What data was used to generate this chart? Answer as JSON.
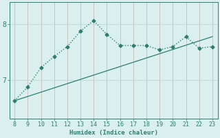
{
  "x_data": [
    8,
    9,
    10,
    11,
    12,
    13,
    14,
    15,
    16,
    17,
    18,
    19,
    20,
    21,
    22,
    23
  ],
  "y_curve": [
    6.62,
    6.87,
    7.22,
    7.42,
    7.6,
    7.88,
    8.07,
    7.82,
    7.62,
    7.62,
    7.62,
    7.54,
    7.6,
    7.78,
    7.57,
    7.6
  ],
  "y_line_x": [
    8,
    23
  ],
  "y_line_y": [
    6.62,
    7.78
  ],
  "curve_color": "#2e7d6e",
  "line_color": "#2e7d6e",
  "bg_color": "#d9f0ef",
  "grid_color_v": "#c9b0b0",
  "grid_color_h": "#b8d0ce",
  "xlabel": "Humidex (Indice chaleur)",
  "xticks": [
    8,
    9,
    10,
    11,
    12,
    13,
    14,
    15,
    16,
    17,
    18,
    19,
    20,
    21,
    22,
    23
  ],
  "yticks": [
    7,
    8
  ],
  "ylim": [
    6.3,
    8.4
  ],
  "xlim": [
    7.6,
    23.4
  ]
}
